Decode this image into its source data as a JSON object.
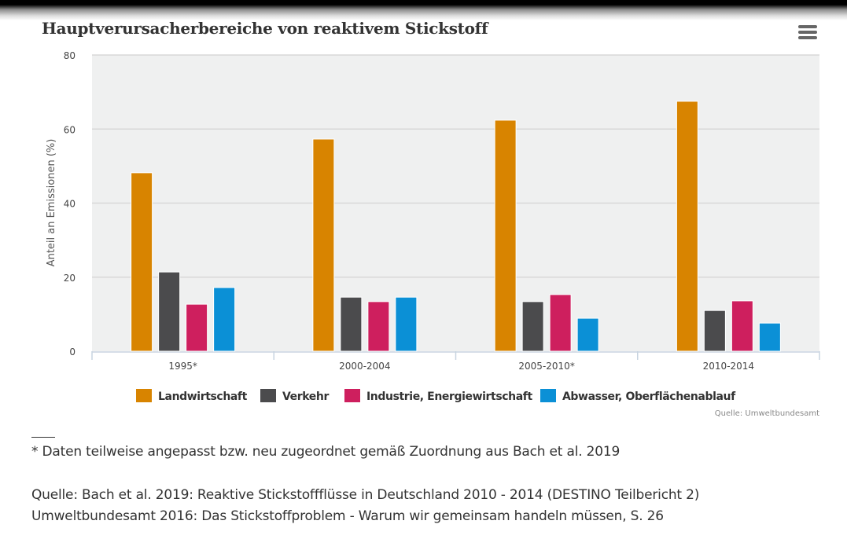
{
  "title": "Hauptverursacherbereiche von reaktivem Stickstoff",
  "menu_icon": "hamburger-menu-icon",
  "chart_data": {
    "type": "bar",
    "title": "Hauptverursacherbereiche von reaktivem Stickstoff",
    "xlabel": "",
    "ylabel": "Anteil an Emissionen (%)",
    "ylim": [
      0,
      80
    ],
    "yticks": [
      0,
      20,
      40,
      60,
      80
    ],
    "grid": true,
    "legend_position": "bottom",
    "categories": [
      "1995*",
      "2000-2004",
      "2005-2010*",
      "2010-2014"
    ],
    "series": [
      {
        "name": "Landwirtschaft",
        "color": "#d88400",
        "values": [
          48.2,
          57.3,
          62.4,
          67.5
        ]
      },
      {
        "name": "Verkehr",
        "color": "#4b4b4d",
        "values": [
          21.4,
          14.6,
          13.4,
          11.0
        ]
      },
      {
        "name": "Industrie, Energiewirtschaft",
        "color": "#ce1f5e",
        "values": [
          12.7,
          13.4,
          15.3,
          13.6
        ]
      },
      {
        "name": "Abwasser, Oberflächenablauf",
        "color": "#0b90d6",
        "values": [
          17.2,
          14.6,
          8.9,
          7.6
        ]
      }
    ],
    "credit": "Quelle: Umweltbundesamt"
  },
  "notes": {
    "footnote": "* Daten teilweise angepasst bzw. neu zugeordnet gemäß Zuordnung aus Bach et al. 2019",
    "source_1": "Quelle: Bach et al. 2019: Reaktive Stickstoffflüsse in Deutschland 2010 - 2014 (DESTINO Teilbericht 2)",
    "source_2": "Umweltbundesamt 2016: Das Stickstoffproblem - Warum wir gemeinsam handeln müssen, S. 26"
  }
}
